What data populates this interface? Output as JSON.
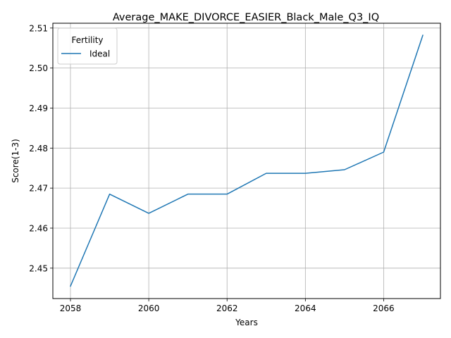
{
  "chart_data": {
    "type": "line",
    "title": "Average_MAKE_DIVORCE_EASIER_Black_Male_Q3_IQ",
    "xlabel": "Years",
    "ylabel": "Score(1-3)",
    "x": [
      2058,
      2059,
      2060,
      2061,
      2062,
      2063,
      2064,
      2065,
      2066,
      2067
    ],
    "series": [
      {
        "name": "Ideal",
        "color": "#1f77b4",
        "values": [
          2.4455,
          2.4685,
          2.4637,
          2.4685,
          2.4685,
          2.4737,
          2.4737,
          2.4746,
          2.479,
          2.5082
        ]
      }
    ],
    "xlim": [
      2057.55,
      2067.45
    ],
    "ylim": [
      2.4424,
      2.5112
    ],
    "xticks": [
      2058,
      2060,
      2062,
      2064,
      2066
    ],
    "yticks": [
      2.45,
      2.46,
      2.47,
      2.48,
      2.49,
      2.5,
      2.51
    ],
    "ytick_labels": [
      "2.45",
      "2.46",
      "2.47",
      "2.48",
      "2.49",
      "2.50",
      "2.51"
    ],
    "grid": true,
    "legend": {
      "title": "Fertility",
      "placement": "upper-left"
    }
  }
}
